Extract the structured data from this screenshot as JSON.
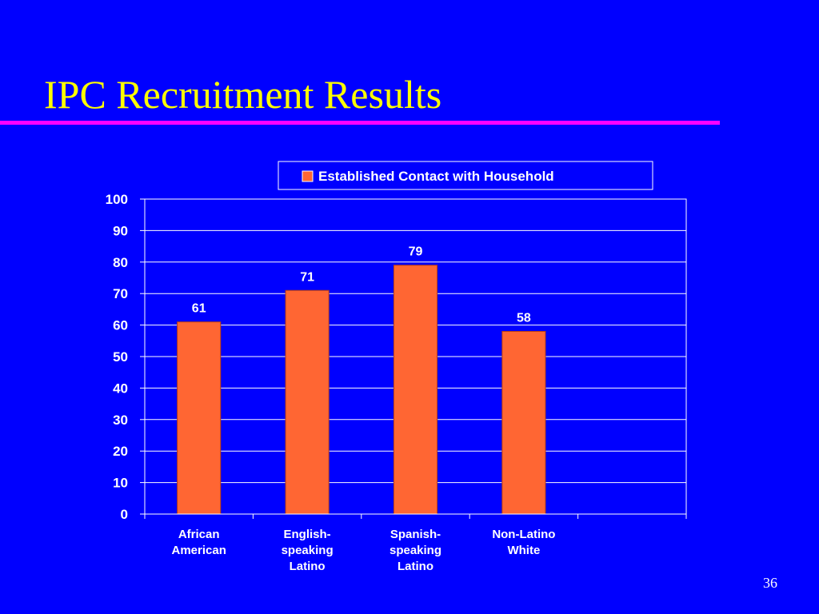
{
  "slide": {
    "title": "IPC Recruitment Results",
    "page_number": "36"
  },
  "colors": {
    "background": "#0000ff",
    "title": "#ffff00",
    "rule": "#ff00ff",
    "bar": "#ff6633",
    "text": "#ffffff"
  },
  "chart_data": {
    "type": "bar",
    "categories": [
      [
        "African",
        "American"
      ],
      [
        "English-",
        "speaking",
        "Latino"
      ],
      [
        "Spanish-",
        "speaking",
        "Latino"
      ],
      [
        "Non-Latino",
        "White"
      ],
      [
        ""
      ]
    ],
    "series": [
      {
        "name": "Established Contact with Household",
        "values": [
          61,
          71,
          79,
          58,
          null
        ],
        "labels": [
          "61",
          "71",
          "79",
          "58",
          ""
        ]
      }
    ],
    "title": "",
    "xlabel": "",
    "ylabel": "",
    "ylim": [
      0,
      100
    ],
    "yticks": [
      "0",
      "10",
      "20",
      "30",
      "40",
      "50",
      "60",
      "70",
      "80",
      "90",
      "100"
    ],
    "grid": true,
    "legend_position": "top-right"
  }
}
